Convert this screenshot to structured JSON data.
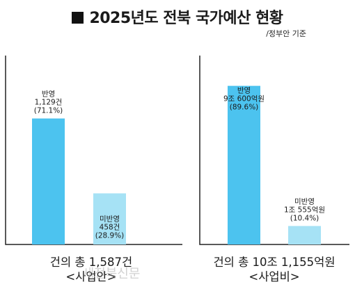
{
  "header": {
    "title": "2025년도 전북 국가예산 현황",
    "subtitle": "/정부안 기준"
  },
  "watermark": "새전북신문",
  "colors": {
    "reflected": "#4cc3ef",
    "not_reflected": "#a6e2f5"
  },
  "chart_data": [
    {
      "type": "bar",
      "title": "",
      "panel_label": [
        "건의 총 1,587건",
        "<사업안>"
      ],
      "unit": "건",
      "total": 1587,
      "categories": [
        "반영",
        "미반영"
      ],
      "values": [
        1129,
        458
      ],
      "percents": [
        71.1,
        28.9
      ],
      "data_labels": [
        [
          "반영",
          "1,129건",
          "(71.1%)"
        ],
        [
          "미반영",
          "458건",
          "(28.9%)"
        ]
      ]
    },
    {
      "type": "bar",
      "title": "",
      "panel_label": [
        "건의 총 10조 1,155억원",
        "<사업비>"
      ],
      "unit": "억원",
      "total": 101155,
      "categories": [
        "반영",
        "미반영"
      ],
      "values": [
        90600,
        10555
      ],
      "percents": [
        89.6,
        10.4
      ],
      "data_labels": [
        [
          "반영",
          "9조 600억원",
          "(89.6%)"
        ],
        [
          "미반영",
          "1조 555억원",
          "(10.4%)"
        ]
      ]
    }
  ]
}
